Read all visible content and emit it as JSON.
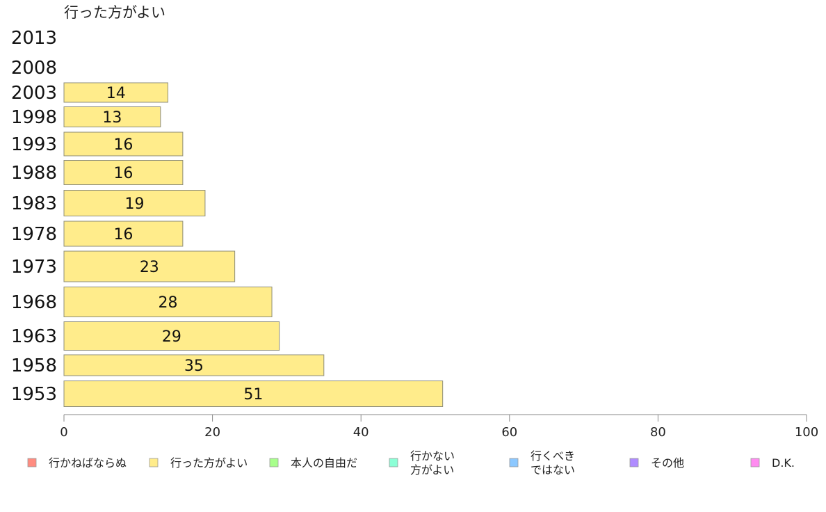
{
  "chart_data": {
    "type": "bar",
    "orientation": "horizontal",
    "title": "行った方がよい",
    "xlabel": "",
    "ylabel": "",
    "xlim": [
      0,
      100
    ],
    "x_ticks": [
      0,
      20,
      40,
      60,
      80,
      100
    ],
    "grid": false,
    "categories": [
      "2013",
      "2008",
      "2003",
      "1998",
      "1993",
      "1988",
      "1983",
      "1978",
      "1973",
      "1968",
      "1963",
      "1958",
      "1953"
    ],
    "series": [
      {
        "name": "行った方がよい",
        "color": "#ffec8b",
        "values": [
          null,
          null,
          14,
          13,
          16,
          16,
          19,
          16,
          23,
          28,
          29,
          35,
          51
        ]
      }
    ],
    "legend": {
      "placement": "bottom",
      "items": [
        {
          "label": "行かねばならぬ",
          "color": "#ff8c80"
        },
        {
          "label": "行った方がよい",
          "color": "#ffec8b"
        },
        {
          "label": "本人の自由だ",
          "color": "#a8ff8c"
        },
        {
          "label": "行かない\n方がよい",
          "color": "#8cffd6"
        },
        {
          "label": "行くべき\nではない",
          "color": "#8cc8ff"
        },
        {
          "label": "その他",
          "color": "#b08cff"
        },
        {
          "label": "D.K.",
          "color": "#ff8cf0"
        }
      ]
    }
  }
}
